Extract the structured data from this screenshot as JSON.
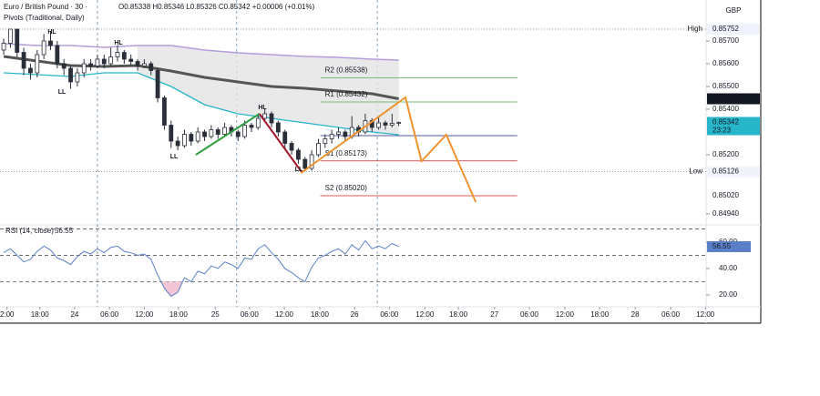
{
  "chart_data": {
    "type": "candlestick",
    "symbol": "Euro / British Pound · 30 ·",
    "indicator": "Pivots (Traditional, Daily)",
    "quote": "O0.85338 H0.85346 L0.85326 C0.85342 +0.00006 (+0.01%)",
    "currency": "GBP",
    "color": "#2a2e39",
    "xlim": [
      -0.55,
      104.9
    ],
    "ylim": [
      0.849,
      0.8588
    ],
    "yticks": [
      {
        "value": 0.857,
        "label": "0.85700"
      },
      {
        "value": 0.856,
        "label": "0.85600"
      },
      {
        "value": 0.855,
        "label": "0.85500"
      },
      {
        "value": 0.854,
        "label": "0.85400"
      },
      {
        "value": 0.852,
        "label": "0.85200"
      },
      {
        "value": 0.8494,
        "label": "0.84940"
      }
    ],
    "xticks": [
      {
        "value": 0.5,
        "label": "2:00"
      },
      {
        "value": 5.4,
        "label": "18:00"
      },
      {
        "value": 10.6,
        "label": "24"
      },
      {
        "value": 15.8,
        "label": "06:00"
      },
      {
        "value": 21,
        "label": "12:00"
      },
      {
        "value": 26.1,
        "label": "18:00"
      },
      {
        "value": 31.6,
        "label": "25"
      },
      {
        "value": 36.7,
        "label": "06:00"
      },
      {
        "value": 41.9,
        "label": "12:00"
      },
      {
        "value": 47.2,
        "label": "18:00"
      },
      {
        "value": 52.4,
        "label": "26"
      },
      {
        "value": 57.6,
        "label": "06:00"
      },
      {
        "value": 62.9,
        "label": "12:00"
      },
      {
        "value": 67.9,
        "label": "18:00"
      },
      {
        "value": 73.3,
        "label": "27"
      },
      {
        "value": 78.5,
        "label": "06:00"
      },
      {
        "value": 83.8,
        "label": "12:00"
      },
      {
        "value": 89,
        "label": "18:00"
      },
      {
        "value": 94.3,
        "label": "28"
      },
      {
        "value": 99.6,
        "label": "06:00"
      },
      {
        "value": 104.8,
        "label": "12:00"
      }
    ],
    "session_lines": [
      14,
      34.8,
      55.8
    ],
    "candles": {
      "open": [
        0.8566,
        0.8569,
        0.85752,
        0.8565,
        0.8558,
        0.8556,
        0.8564,
        0.857,
        0.8568,
        0.856,
        0.8558,
        0.8552,
        0.8556,
        0.856,
        0.8559,
        0.8562,
        0.856,
        0.8563,
        0.8565,
        0.8562,
        0.8561,
        0.8559,
        0.856,
        0.8557,
        0.8545,
        0.8533,
        0.8526,
        0.8524,
        0.8529,
        0.8526,
        0.853,
        0.8528,
        0.8531,
        0.8529,
        0.8532,
        0.853,
        0.8528,
        0.8533,
        0.8532,
        0.8536,
        0.8538,
        0.8534,
        0.853,
        0.8525,
        0.8522,
        0.8518,
        0.8514,
        0.852,
        0.8525,
        0.8527,
        0.8529,
        0.853,
        0.8528,
        0.8532,
        0.853,
        0.8535,
        0.8532,
        0.8534,
        0.8533,
        0.85338
      ],
      "high": [
        0.8571,
        0.85752,
        0.8573,
        0.8567,
        0.856,
        0.8566,
        0.8573,
        0.8574,
        0.857,
        0.8562,
        0.8559,
        0.8558,
        0.8562,
        0.8562,
        0.8564,
        0.8564,
        0.8567,
        0.8568,
        0.8566,
        0.8564,
        0.8562,
        0.8562,
        0.8561,
        0.8558,
        0.8546,
        0.8535,
        0.8528,
        0.8531,
        0.853,
        0.8532,
        0.8531,
        0.8533,
        0.8532,
        0.8534,
        0.8533,
        0.8531,
        0.8535,
        0.8534,
        0.8538,
        0.854,
        0.8539,
        0.8535,
        0.8531,
        0.8526,
        0.8523,
        0.8519,
        0.8522,
        0.8527,
        0.8529,
        0.8531,
        0.8532,
        0.8531,
        0.8537,
        0.8533,
        0.8538,
        0.8536,
        0.8537,
        0.8535,
        0.8538,
        0.85346
      ],
      "low": [
        0.8564,
        0.8567,
        0.8563,
        0.8555,
        0.8553,
        0.8554,
        0.8562,
        0.8566,
        0.8558,
        0.8555,
        0.8549,
        0.855,
        0.8554,
        0.8557,
        0.8558,
        0.8558,
        0.8559,
        0.8561,
        0.856,
        0.8559,
        0.8557,
        0.8558,
        0.8555,
        0.8543,
        0.8531,
        0.8523,
        0.8522,
        0.8523,
        0.8524,
        0.8525,
        0.8526,
        0.8527,
        0.8527,
        0.8528,
        0.8528,
        0.8526,
        0.8527,
        0.853,
        0.8531,
        0.8535,
        0.8532,
        0.8528,
        0.8523,
        0.852,
        0.8516,
        0.85126,
        0.8513,
        0.8519,
        0.8523,
        0.8525,
        0.8527,
        0.8526,
        0.8527,
        0.8528,
        0.8529,
        0.853,
        0.8531,
        0.8531,
        0.8532,
        0.85326
      ],
      "close": [
        0.8569,
        0.85752,
        0.8565,
        0.8558,
        0.8556,
        0.8564,
        0.857,
        0.8568,
        0.856,
        0.8558,
        0.8552,
        0.8556,
        0.856,
        0.8559,
        0.8562,
        0.856,
        0.8563,
        0.8565,
        0.8562,
        0.8561,
        0.8559,
        0.856,
        0.8557,
        0.8545,
        0.8533,
        0.8526,
        0.8524,
        0.8529,
        0.8526,
        0.853,
        0.8528,
        0.8531,
        0.8529,
        0.8532,
        0.853,
        0.8528,
        0.8533,
        0.8532,
        0.8536,
        0.8538,
        0.8534,
        0.853,
        0.8525,
        0.8522,
        0.8518,
        0.8514,
        0.852,
        0.8525,
        0.8527,
        0.8529,
        0.853,
        0.8528,
        0.8532,
        0.853,
        0.8535,
        0.8532,
        0.8534,
        0.8533,
        0.85338,
        0.85342
      ]
    },
    "ma_x": [
      0,
      5,
      10,
      15,
      20,
      25,
      30,
      35,
      40,
      45,
      50,
      55,
      59
    ],
    "overlays": [
      {
        "color": "#b39ddb",
        "width": 1.5,
        "values": [
          0.85688,
          0.8568,
          0.8568,
          0.85672,
          0.8568,
          0.8568,
          0.8566,
          0.85648,
          0.8564,
          0.85632,
          0.85628,
          0.8562,
          0.85616
        ]
      },
      {
        "color": "#26b5c9",
        "width": 1.3,
        "values": [
          0.8556,
          0.85552,
          0.85544,
          0.8556,
          0.8556,
          0.855,
          0.8542,
          0.8538,
          0.8536,
          0.8534,
          0.8532,
          0.853,
          0.85288
        ]
      },
      {
        "color": "#555555",
        "width": 3,
        "values": [
          0.85632,
          0.85612,
          0.85592,
          0.85588,
          0.85592,
          0.85568,
          0.8554,
          0.8552,
          0.855,
          0.85492,
          0.8548,
          0.85468,
          0.85446
        ]
      }
    ],
    "band_fill": {
      "color": "#e3e3e3",
      "from": 20
    },
    "pivot_xlim": [
      47.3,
      76.7
    ],
    "pivots": [
      {
        "label": "R2 (0.85538)",
        "value": 0.85538,
        "color": "#4caf50"
      },
      {
        "label": "R1 (0.85432)",
        "value": 0.85432,
        "color": "#4caf50"
      },
      {
        "value": 0.85284,
        "color": "#1a237e"
      },
      {
        "label": "S1 (0.85173)",
        "value": 0.85173,
        "color": "#c62828"
      },
      {
        "label": "S2 (0.85020)",
        "value": 0.8502,
        "color": "#c62828"
      }
    ],
    "drawings": [
      {
        "color": "#2e9e3e",
        "x": [
          28.7,
          38.2
        ],
        "values": [
          0.852,
          0.8538
        ]
      },
      {
        "color": "#a3152a",
        "x": [
          38.2,
          44.6
        ],
        "values": [
          0.8538,
          0.8512
        ]
      },
      {
        "color": "#f0922e",
        "x": [
          44.4,
          60,
          62.4,
          66.1,
          70.5
        ],
        "values": [
          0.8512,
          0.85452,
          0.85172,
          0.85288,
          0.84992
        ]
      }
    ],
    "annotations": [
      "HL",
      "LL",
      "HL",
      "LL",
      "HL",
      "LL"
    ],
    "price_markers": [
      {
        "value": 0.85752,
        "tag": "High"
      },
      {
        "value": 0.85446,
        "color": "#131722"
      },
      {
        "value": 0.85342,
        "color": "#26b5c9",
        "sub": "23:23"
      },
      {
        "value": 0.85126,
        "tag": "Low"
      },
      {
        "value": 0.8502,
        "label": "0.85020"
      }
    ],
    "rsi": {
      "title": "RSI (14, close)",
      "color": "#5b7fc7",
      "ylim": [
        12.4,
        71
      ],
      "yticks": [
        {
          "value": 60,
          "label": "60.00"
        },
        {
          "value": 40,
          "label": "40.00"
        },
        {
          "value": 20,
          "label": "20.00"
        }
      ],
      "levels": [
        70,
        50,
        30
      ],
      "oversold_fill": "#f3c6d6",
      "values": [
        52,
        55,
        50,
        45,
        47,
        53,
        57,
        54,
        48,
        46,
        43,
        49,
        53,
        51,
        55,
        52,
        56,
        57,
        53,
        52,
        50,
        51,
        47,
        35,
        25,
        19,
        22,
        33,
        30,
        38,
        36,
        42,
        40,
        45,
        43,
        40,
        48,
        47,
        55,
        58,
        52,
        47,
        40,
        37,
        33,
        30,
        41,
        48,
        50,
        53,
        55,
        51,
        58,
        54,
        61,
        55,
        57,
        55,
        59,
        56.55
      ]
    }
  }
}
